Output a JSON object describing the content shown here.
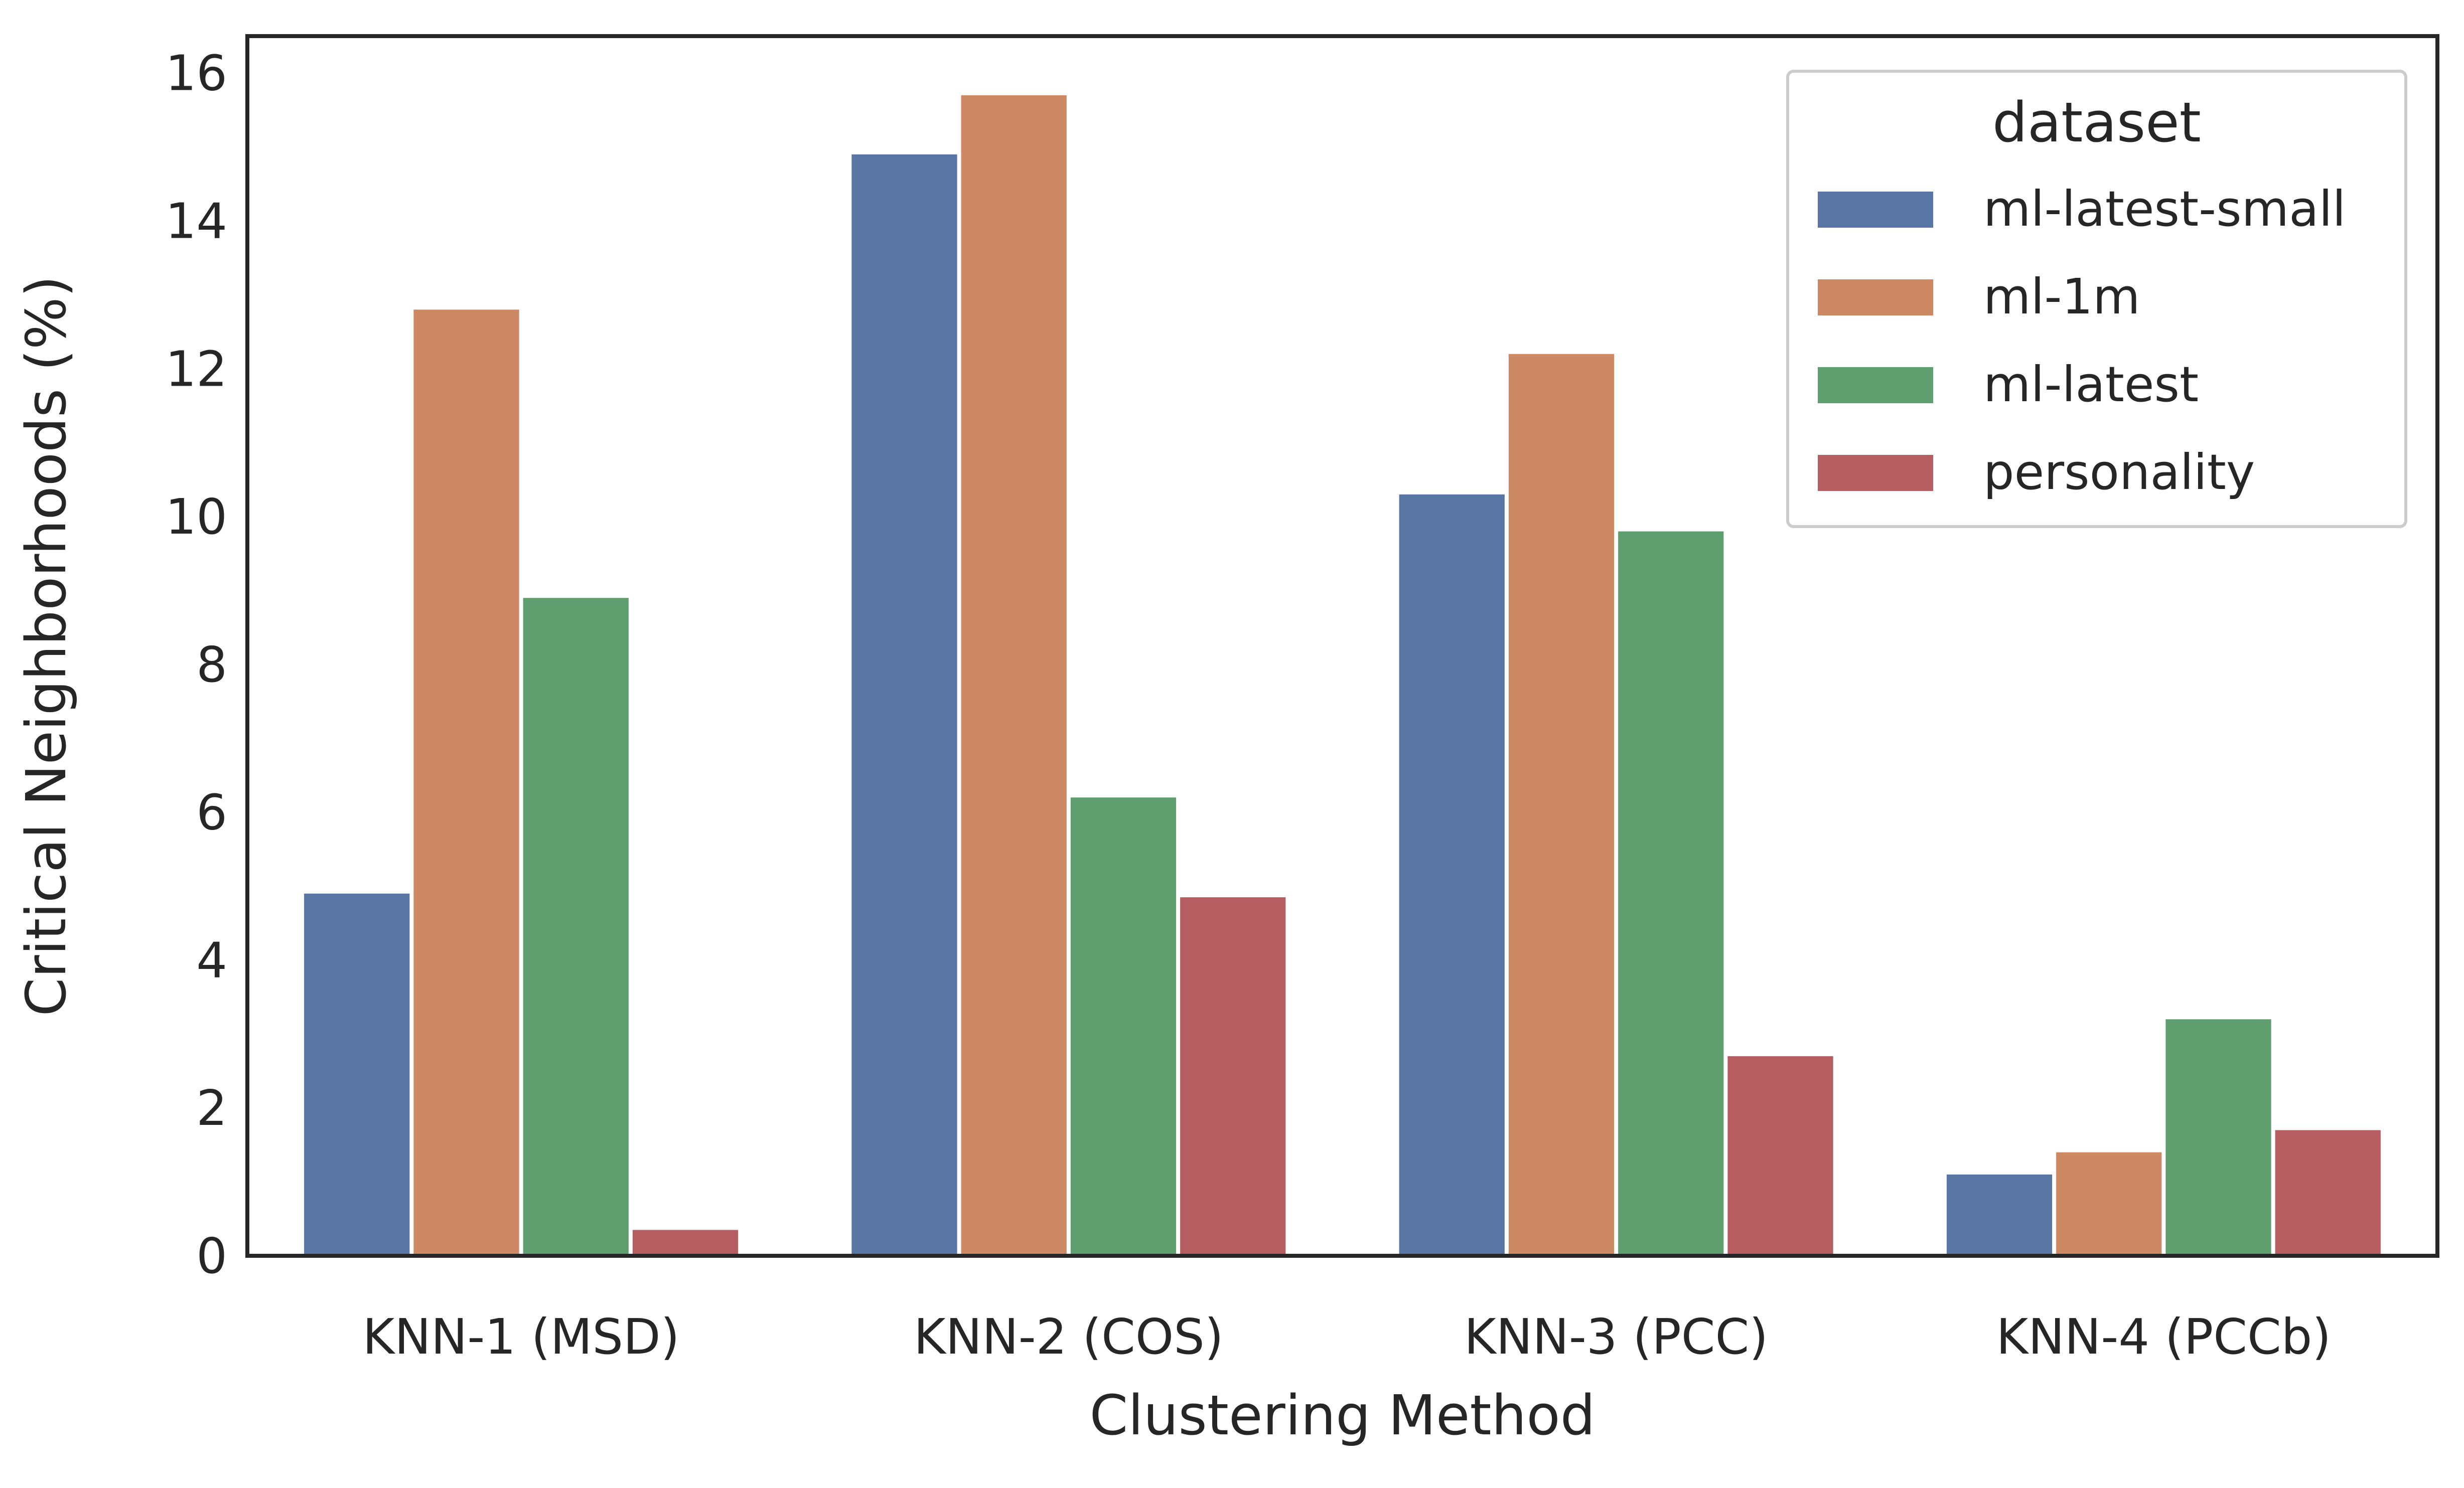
{
  "chart_data": {
    "type": "bar",
    "xlabel": "Clustering Method",
    "ylabel": "Critical Neighborhoods (%)",
    "ylim": [
      0,
      16.5
    ],
    "yticks": [
      "0",
      "2",
      "4",
      "6",
      "8",
      "10",
      "12",
      "14",
      "16"
    ],
    "grid": false,
    "legend": {
      "title": "dataset",
      "placement": "top-right"
    },
    "categories": [
      "KNN-1 (MSD)",
      "KNN-2 (COS)",
      "KNN-3 (PCC)",
      "KNN-4 (PCCb)"
    ],
    "series": [
      {
        "name": "ml-latest-small",
        "color": "#5875a4",
        "values": [
          4.9,
          14.9,
          10.3,
          1.1
        ]
      },
      {
        "name": "ml-1m",
        "color": "#cc8963",
        "values": [
          12.8,
          15.7,
          12.2,
          1.4
        ]
      },
      {
        "name": "ml-latest",
        "color": "#5f9e6e",
        "values": [
          8.9,
          6.2,
          9.8,
          3.2
        ]
      },
      {
        "name": "personality",
        "color": "#b55d60",
        "values": [
          0.35,
          4.85,
          2.7,
          1.7
        ]
      }
    ]
  }
}
